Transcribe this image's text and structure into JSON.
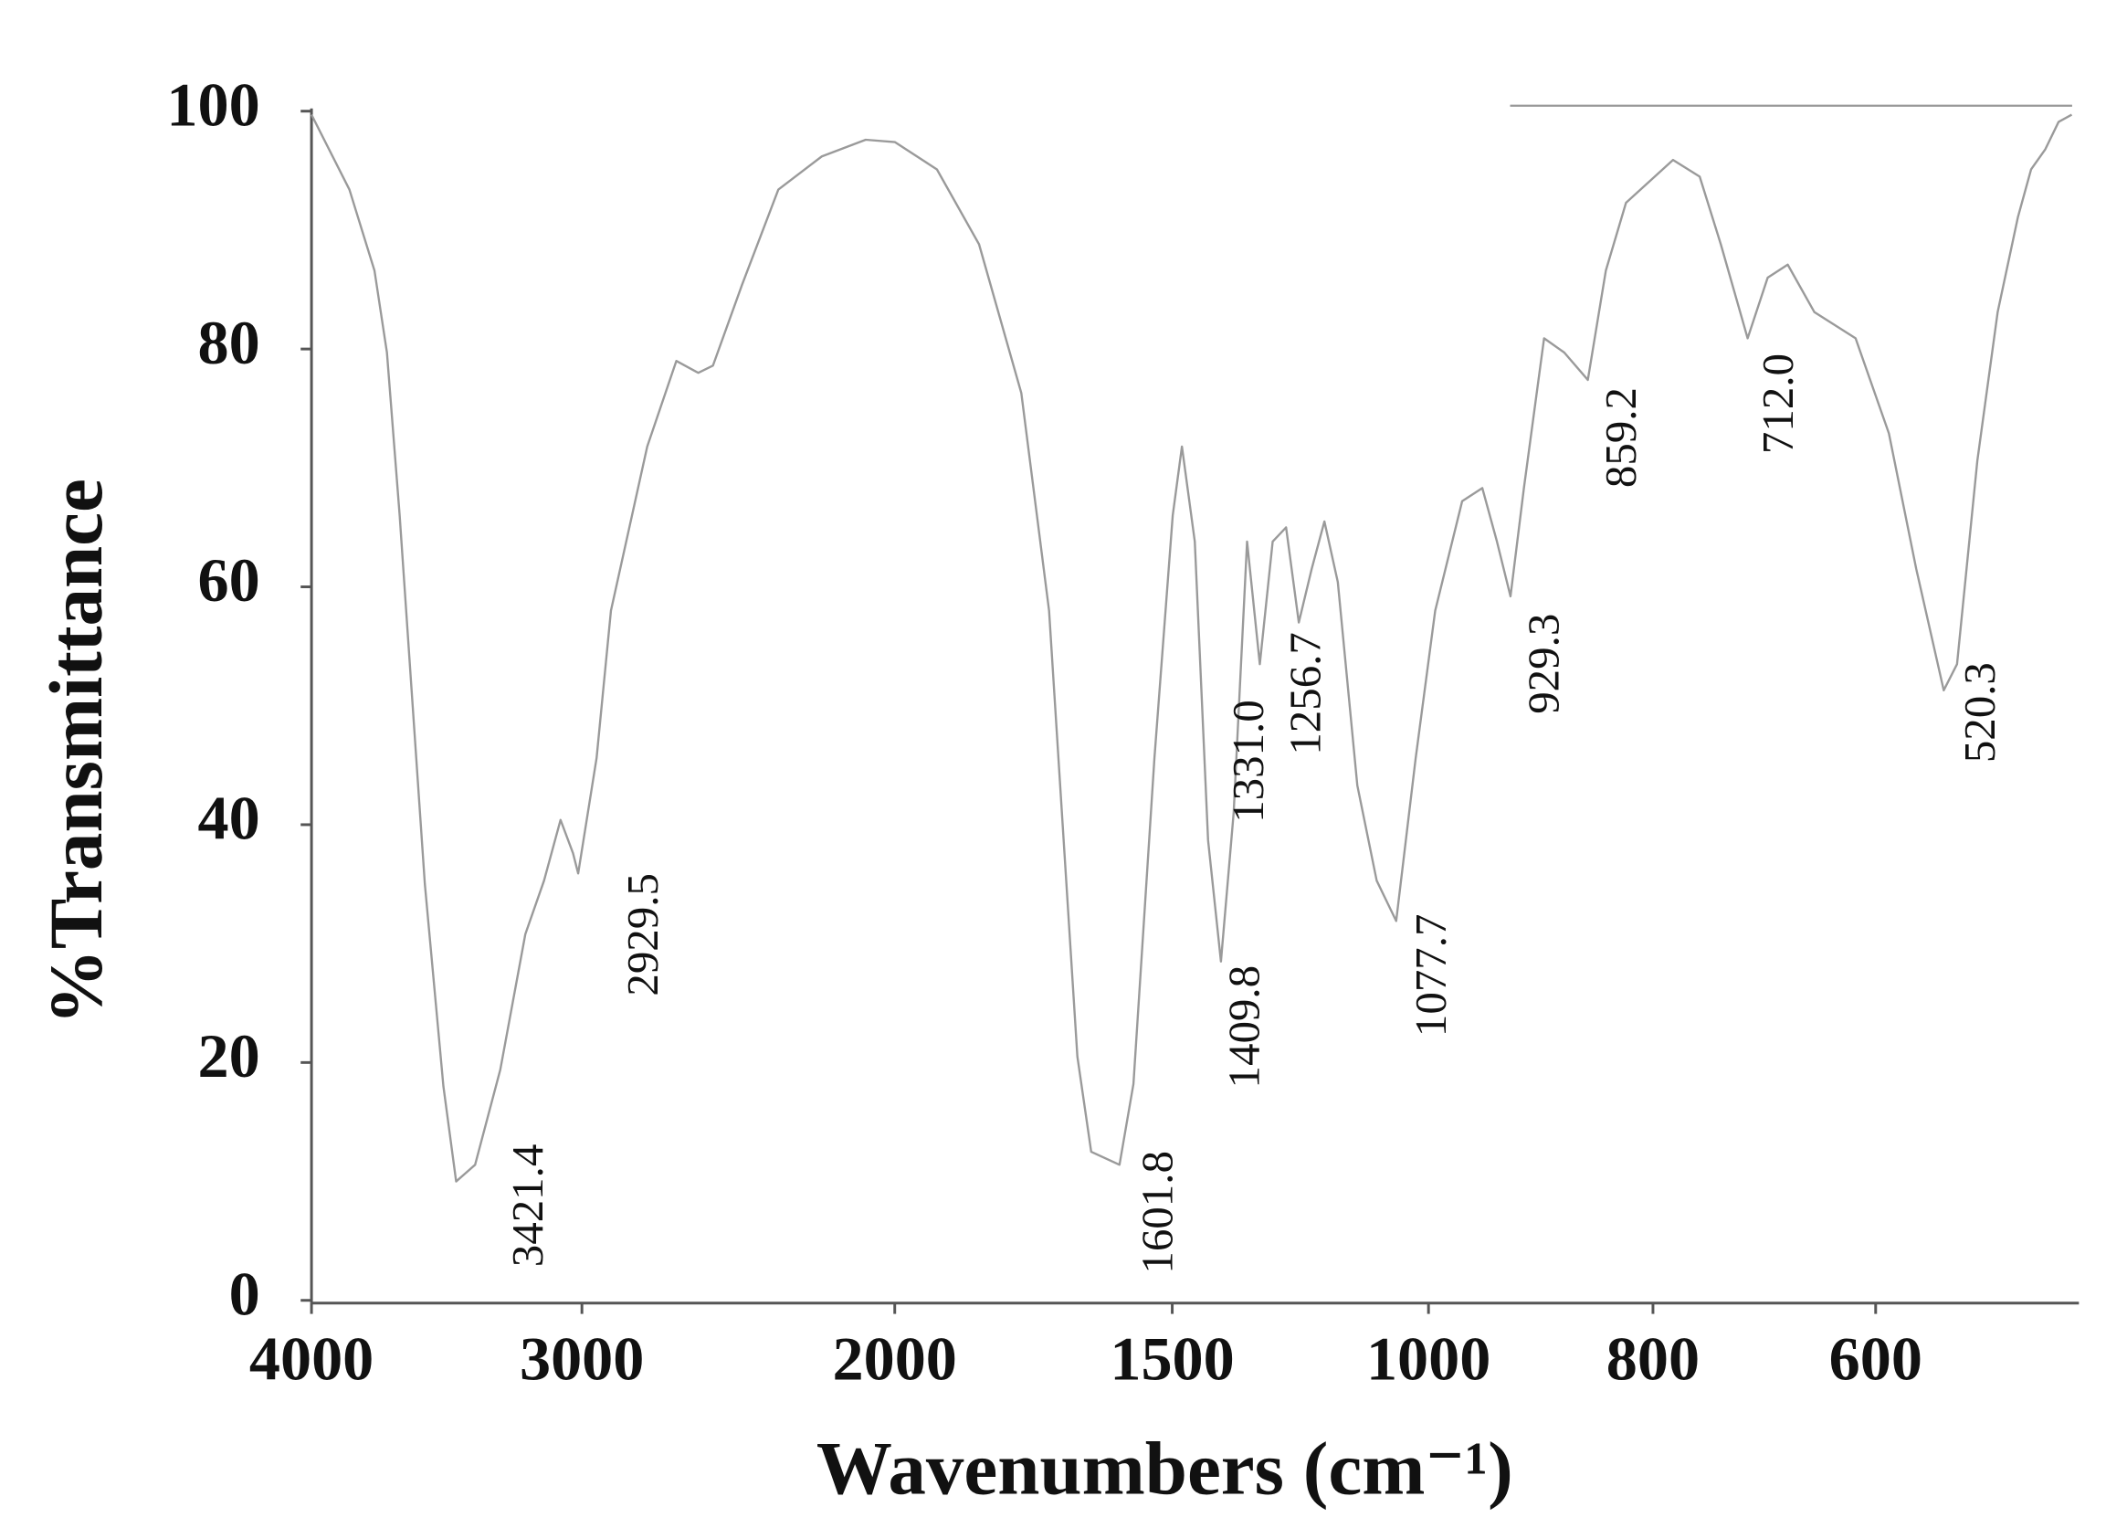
{
  "chart_data": {
    "type": "line",
    "xlabel": "Wavenumbers (cm⁻¹)",
    "ylabel": "%Transmittance",
    "xlim": [
      4000,
      400
    ],
    "xticks": [
      4000,
      3000,
      2000,
      1500,
      1000,
      800,
      600
    ],
    "ylim": [
      0,
      100
    ],
    "yticks": [
      0,
      20,
      40,
      60,
      80,
      100
    ],
    "color": "#9a9a9a",
    "x": [
      4000,
      3860,
      3767,
      3721,
      3674,
      3581,
      3512,
      3465,
      3395,
      3302,
      3209,
      3140,
      3079,
      3033,
      3014,
      2953,
      2907,
      2791,
      2698,
      2628,
      2581,
      2488,
      2372,
      2233,
      2093,
      2000,
      1924,
      1848,
      1772,
      1722,
      1671,
      1646,
      1595,
      1570,
      1532,
      1499,
      1481,
      1456,
      1430,
      1405,
      1380,
      1354,
      1329,
      1304,
      1278,
      1253,
      1228,
      1203,
      1177,
      1139,
      1101,
      1063,
      1025,
      994,
      970,
      952,
      939,
      927,
      915,
      897,
      879,
      858,
      842,
      824,
      782,
      758,
      739,
      715,
      697,
      679,
      655,
      618,
      587,
      560,
      533,
      520,
      500,
      480,
      460,
      447,
      433,
      420,
      407
    ],
    "values": [
      99.7,
      93.4,
      86.6,
      79.7,
      66.0,
      35.0,
      18.0,
      10.0,
      11.4,
      19.4,
      30.8,
      35.3,
      40.4,
      37.6,
      35.9,
      45.6,
      58.0,
      71.8,
      79.0,
      78.0,
      78.6,
      85.4,
      93.4,
      96.2,
      97.6,
      97.4,
      95.1,
      88.8,
      76.3,
      58.0,
      20.5,
      12.5,
      11.4,
      18.2,
      45.6,
      66.0,
      71.8,
      63.8,
      38.7,
      28.5,
      41.0,
      63.8,
      53.5,
      63.8,
      65.0,
      57.0,
      61.5,
      65.5,
      60.4,
      43.3,
      35.3,
      31.9,
      45.6,
      58.0,
      67.2,
      68.3,
      63.8,
      59.2,
      68.3,
      80.9,
      79.7,
      77.4,
      86.6,
      92.3,
      95.9,
      94.5,
      88.8,
      80.9,
      86.0,
      87.1,
      83.1,
      80.9,
      72.9,
      61.5,
      51.3,
      53.5,
      70.6,
      83.1,
      91.1,
      95.1,
      96.8,
      99.1,
      99.7
    ],
    "annotations": [
      "3421.4",
      "2929.5",
      "1601.8",
      "1409.8",
      "1331.0",
      "1256.7",
      "1077.7",
      "929.3",
      "859.2",
      "712.0",
      "520.3"
    ]
  }
}
